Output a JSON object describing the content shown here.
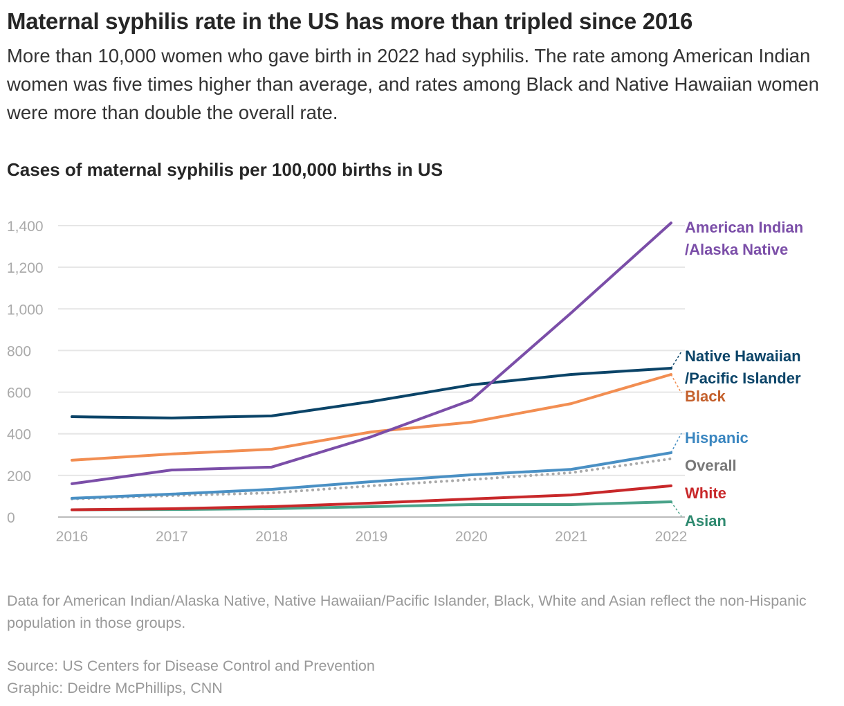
{
  "title": "Maternal syphilis rate in the US has more than tripled since 2016",
  "subtitle": "More than 10,000 women who gave birth in 2022 had syphilis. The rate among American Indian women was five times higher than average, and rates among Black and Native Hawaiian women were more than double the overall rate.",
  "note": "Data for American Indian/Alaska Native, Native Hawaiian/Pacific Islander, Black, White and Asian reflect the non-Hispanic population in those groups.",
  "source": "Source: US Centers for Disease Control and Prevention",
  "credit": "Graphic: Deidre McPhillips, CNN",
  "chart_data": {
    "type": "line",
    "title": "Cases of maternal syphilis per 100,000 births in US",
    "x": [
      2016,
      2017,
      2018,
      2019,
      2020,
      2021,
      2022
    ],
    "ylim": [
      0,
      1400
    ],
    "yticks": [
      "0",
      "200",
      "400",
      "600",
      "800",
      "1,000",
      "1,200",
      "1,400"
    ],
    "xticks": [
      "2016",
      "2017",
      "2018",
      "2019",
      "2020",
      "2021",
      "2022"
    ],
    "grid": true,
    "legend": "direct labels at right",
    "series": [
      {
        "name": "American Indian /Alaska Native",
        "label_lines": [
          "American Indian",
          "/Alaska Native"
        ],
        "color": "#7b4ea8",
        "label_color": "#7b4ea8",
        "style": "solid",
        "values": [
          160,
          226,
          240,
          386,
          562,
          981,
          1413
        ]
      },
      {
        "name": "Native Hawaiian /Pacific Islander",
        "label_lines": [
          "Native Hawaiian",
          "/Pacific Islander"
        ],
        "color": "#0b4468",
        "label_color": "#0b4468",
        "style": "solid",
        "values": [
          482,
          476,
          486,
          555,
          635,
          685,
          715
        ]
      },
      {
        "name": "Black",
        "label_lines": [
          "Black"
        ],
        "color": "#f28e52",
        "label_color": "#c4602c",
        "style": "solid",
        "values": [
          273,
          303,
          326,
          409,
          456,
          545,
          685
        ]
      },
      {
        "name": "Hispanic",
        "label_lines": [
          "Hispanic"
        ],
        "color": "#4a90c4",
        "label_color": "#3a86c0",
        "style": "solid",
        "values": [
          90,
          110,
          133,
          170,
          203,
          229,
          309
        ]
      },
      {
        "name": "Overall",
        "label_lines": [
          "Overall"
        ],
        "color": "#aaaaaa",
        "label_color": "#777777",
        "style": "dotted",
        "values": [
          87,
          103,
          116,
          150,
          180,
          213,
          280
        ]
      },
      {
        "name": "White",
        "label_lines": [
          "White"
        ],
        "color": "#c8282a",
        "label_color": "#c8282a",
        "style": "solid",
        "values": [
          35,
          40,
          50,
          67,
          87,
          106,
          150
        ]
      },
      {
        "name": "Asian",
        "label_lines": [
          "Asian"
        ],
        "color": "#4aa38a",
        "label_color": "#2f8a70",
        "style": "solid",
        "values": [
          35,
          36,
          40,
          50,
          60,
          60,
          73
        ]
      }
    ]
  }
}
